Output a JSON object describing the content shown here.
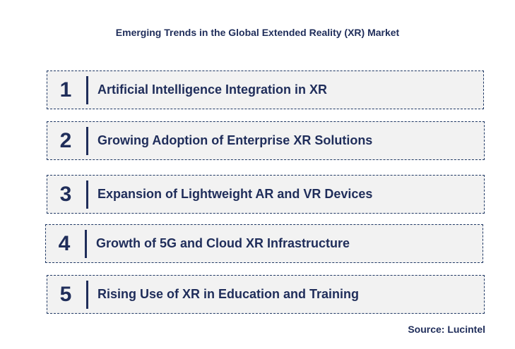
{
  "title": "Emerging Trends in the Global Extended Reality (XR) Market",
  "trends": [
    {
      "number": "1",
      "label": "Artificial Intelligence Integration in XR"
    },
    {
      "number": "2",
      "label": "Growing Adoption of Enterprise XR Solutions"
    },
    {
      "number": "3",
      "label": "Expansion of Lightweight AR and VR Devices"
    },
    {
      "number": "4",
      "label": "Growth of 5G and Cloud XR Infrastructure"
    },
    {
      "number": "5",
      "label": "Rising Use of XR in Education and Training"
    }
  ],
  "source": "Source: Lucintel"
}
